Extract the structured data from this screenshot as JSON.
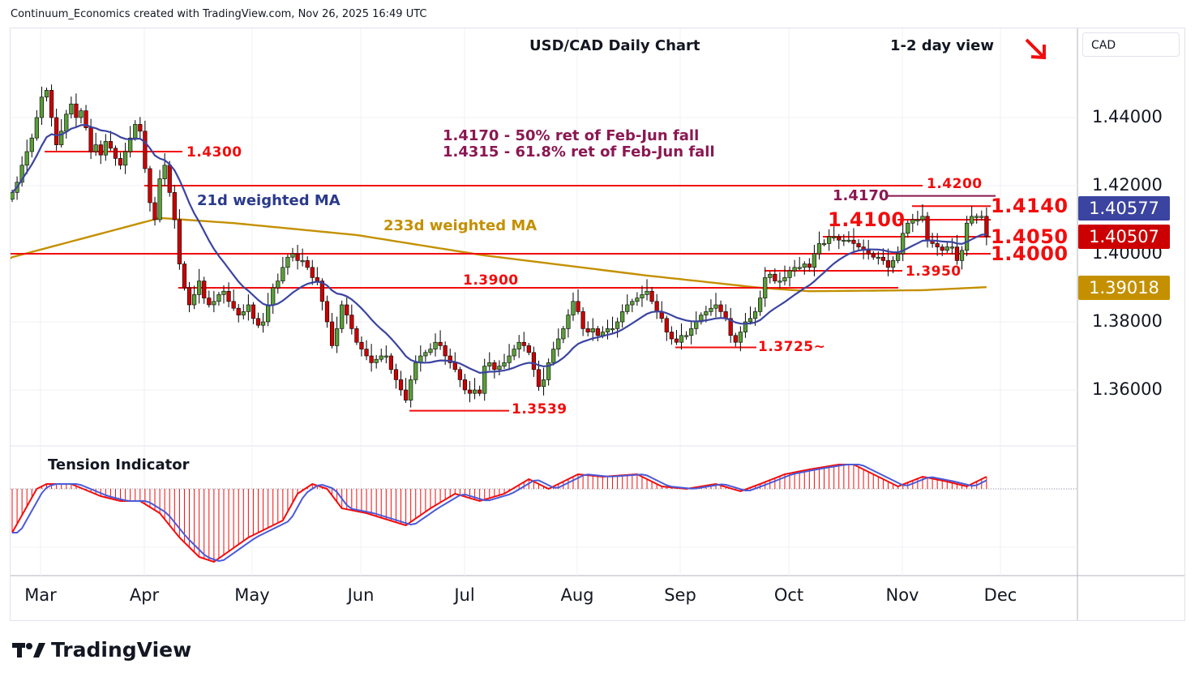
{
  "header": {
    "attribution": "Continuum_Economics created with TradingView.com, Nov 26, 2025 16:49 UTC"
  },
  "currency_button": "CAD",
  "footer": {
    "logo_text": "TradingView"
  },
  "colors": {
    "up": "#5b9e3a",
    "down": "#cc0000",
    "ma21": "#3b44a0",
    "ma233": "#c49000",
    "level": "#f20d0d",
    "fib": "#8b1852",
    "tension": "#f20d0d",
    "tension_signal": "#4a5ad8"
  },
  "chart_data": {
    "type": "candlestick",
    "title": "USD/CAD Daily Chart",
    "subtitle": "1-2 day view",
    "outlook_icon": "arrow-down-right-icon",
    "x_ticks": [
      "Mar",
      "Apr",
      "May",
      "Jun",
      "Jul",
      "Aug",
      "Sep",
      "Oct",
      "Nov",
      "Dec"
    ],
    "y_ticks": [
      "1.44000",
      "1.42000",
      "1.40000",
      "1.38000",
      "1.36000"
    ],
    "ylim": [
      1.347,
      1.462
    ],
    "closes": [
      1.418,
      1.421,
      1.426,
      1.43,
      1.434,
      1.44,
      1.446,
      1.448,
      1.44,
      1.432,
      1.436,
      1.441,
      1.444,
      1.44,
      1.442,
      1.437,
      1.43,
      1.432,
      1.429,
      1.433,
      1.431,
      1.428,
      1.426,
      1.43,
      1.434,
      1.438,
      1.436,
      1.425,
      1.415,
      1.41,
      1.422,
      1.426,
      1.418,
      1.41,
      1.397,
      1.39,
      1.385,
      1.388,
      1.392,
      1.387,
      1.385,
      1.386,
      1.388,
      1.389,
      1.386,
      1.384,
      1.382,
      1.383,
      1.385,
      1.381,
      1.379,
      1.38,
      1.385,
      1.39,
      1.392,
      1.396,
      1.399,
      1.4,
      1.398,
      1.398,
      1.396,
      1.393,
      1.392,
      1.386,
      1.38,
      1.373,
      1.378,
      1.385,
      1.382,
      1.378,
      1.374,
      1.372,
      1.37,
      1.368,
      1.369,
      1.37,
      1.37,
      1.366,
      1.363,
      1.36,
      1.357,
      1.363,
      1.368,
      1.37,
      1.371,
      1.372,
      1.374,
      1.373,
      1.37,
      1.368,
      1.366,
      1.363,
      1.36,
      1.359,
      1.36,
      1.359,
      1.367,
      1.368,
      1.366,
      1.367,
      1.368,
      1.37,
      1.372,
      1.374,
      1.373,
      1.371,
      1.366,
      1.361,
      1.363,
      1.368,
      1.372,
      1.375,
      1.378,
      1.382,
      1.386,
      1.383,
      1.378,
      1.377,
      1.378,
      1.376,
      1.377,
      1.378,
      1.378,
      1.38,
      1.383,
      1.385,
      1.386,
      1.387,
      1.388,
      1.389,
      1.386,
      1.383,
      1.381,
      1.377,
      1.375,
      1.374,
      1.376,
      1.376,
      1.378,
      1.38,
      1.382,
      1.383,
      1.384,
      1.385,
      1.383,
      1.381,
      1.376,
      1.374,
      1.377,
      1.38,
      1.381,
      1.383,
      1.387,
      1.393,
      1.394,
      1.392,
      1.392,
      1.393,
      1.395,
      1.396,
      1.396,
      1.397,
      1.396,
      1.4,
      1.403,
      1.403,
      1.405,
      1.405,
      1.404,
      1.404,
      1.404,
      1.403,
      1.402,
      1.401,
      1.4,
      1.399,
      1.399,
      1.398,
      1.396,
      1.398,
      1.4,
      1.406,
      1.409,
      1.41,
      1.41,
      1.411,
      1.404,
      1.403,
      1.402,
      1.401,
      1.402,
      1.402,
      1.398,
      1.401,
      1.409,
      1.411,
      1.411,
      1.411,
      1.4051
    ],
    "ma233_points": [
      [
        0,
        1.399
      ],
      [
        30,
        1.4105
      ],
      [
        45,
        1.409
      ],
      [
        70,
        1.4055
      ],
      [
        96,
        1.3995
      ],
      [
        129,
        1.3936
      ],
      [
        152,
        1.39
      ],
      [
        162,
        1.389
      ],
      [
        185,
        1.3893
      ],
      [
        198,
        1.3902
      ]
    ],
    "tension_points": [
      [
        0,
        -1.8
      ],
      [
        5,
        0
      ],
      [
        7,
        0.2
      ],
      [
        12,
        0.2
      ],
      [
        18,
        -0.3
      ],
      [
        22,
        -0.5
      ],
      [
        26,
        -0.5
      ],
      [
        30,
        -1.0
      ],
      [
        34,
        -2.0
      ],
      [
        38,
        -2.8
      ],
      [
        41,
        -3.0
      ],
      [
        48,
        -2.0
      ],
      [
        55,
        -1.3
      ],
      [
        58,
        -0.2
      ],
      [
        61,
        0.2
      ],
      [
        64,
        0
      ],
      [
        67,
        -0.8
      ],
      [
        72,
        -1.0
      ],
      [
        80,
        -1.5
      ],
      [
        85,
        -0.8
      ],
      [
        90,
        -0.2
      ],
      [
        95,
        -0.5
      ],
      [
        100,
        -0.2
      ],
      [
        105,
        0.4
      ],
      [
        109,
        0
      ],
      [
        115,
        0.6
      ],
      [
        120,
        0.5
      ],
      [
        127,
        0.6
      ],
      [
        132,
        0.1
      ],
      [
        137,
        0
      ],
      [
        143,
        0.2
      ],
      [
        148,
        -0.1
      ],
      [
        152,
        0.2
      ],
      [
        157,
        0.6
      ],
      [
        162,
        0.8
      ],
      [
        168,
        1.0
      ],
      [
        171,
        1.0
      ],
      [
        175,
        0.6
      ],
      [
        180,
        0.1
      ],
      [
        185,
        0.5
      ],
      [
        190,
        0.3
      ],
      [
        194,
        0.1
      ],
      [
        198,
        0.5
      ]
    ],
    "last_values": {
      "ma21": "1.40577",
      "close": "1.40507",
      "ma233": "1.39018"
    },
    "levels": [
      {
        "price": 1.43,
        "label": "1.4300"
      },
      {
        "price": 1.42,
        "label": "1.4200"
      },
      {
        "price": 1.417,
        "label": "1.4170"
      },
      {
        "price": 1.414,
        "label": "1.4140"
      },
      {
        "price": 1.41,
        "label": "1.4100"
      },
      {
        "price": 1.405,
        "label": "1.4050"
      },
      {
        "price": 1.4,
        "label": "1.4000"
      },
      {
        "price": 1.395,
        "label": "1.3950"
      },
      {
        "price": 1.39,
        "label": "1.3900"
      },
      {
        "price": 1.3725,
        "label": "1.3725~"
      },
      {
        "price": 1.3539,
        "label": "1.3539"
      }
    ],
    "annotations": {
      "fib50": "1.4170 - 50% ret of Feb-Jun fall",
      "fib618": "1.4315 - 61.8% ret of Feb-Jun fall",
      "ma21_label": "21d weighted MA",
      "ma233_label": "233d weighted MA",
      "indicator_title": "Tension Indicator"
    }
  }
}
